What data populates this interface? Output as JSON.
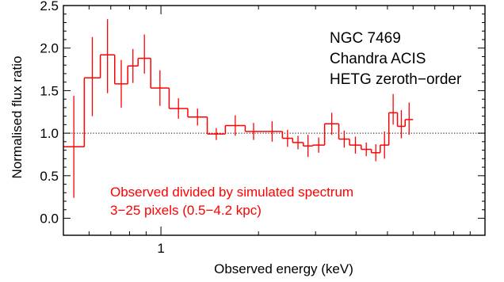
{
  "chart_data": {
    "type": "line",
    "style": "step histogram with vertical error bars",
    "xscale": "log",
    "xlim": [
      0.5,
      10.0
    ],
    "ylim": [
      -0.2,
      2.5
    ],
    "xlabel": "Observed energy (keV)",
    "ylabel": "Normalised flux ratio",
    "x_ticks_labeled": [
      "1"
    ],
    "y_ticks": [
      {
        "value": 0.0,
        "label": "0.0"
      },
      {
        "value": 0.5,
        "label": "0.5"
      },
      {
        "value": 1.0,
        "label": "1.0"
      },
      {
        "value": 1.5,
        "label": "1.5"
      },
      {
        "value": 2.0,
        "label": "2.0"
      },
      {
        "value": 2.5,
        "label": "2.5"
      }
    ],
    "reference_line": {
      "y": 1.0,
      "style": "dotted"
    },
    "annotations": {
      "object": [
        "NGC 7469",
        "Chandra ACIS",
        "HETG zeroth−order"
      ],
      "description": [
        "Observed divided by simulated spectrum",
        "3−25 pixels (0.5−4.2 kpc)"
      ]
    },
    "color_series": "#ff0000",
    "color_axes": "#000000",
    "bins": [
      {
        "lo": 0.5,
        "hi": 0.58,
        "y": 0.84,
        "err_lo": 0.6,
        "err_hi": 0.6
      },
      {
        "lo": 0.58,
        "hi": 0.65,
        "y": 1.65,
        "err_lo": 0.45,
        "err_hi": 0.48
      },
      {
        "lo": 0.65,
        "hi": 0.72,
        "y": 1.92,
        "err_lo": 0.45,
        "err_hi": 0.42
      },
      {
        "lo": 0.72,
        "hi": 0.79,
        "y": 1.58,
        "err_lo": 0.28,
        "err_hi": 0.28
      },
      {
        "lo": 0.79,
        "hi": 0.85,
        "y": 1.79,
        "err_lo": 0.2,
        "err_hi": 0.2
      },
      {
        "lo": 0.85,
        "hi": 0.93,
        "y": 1.88,
        "err_lo": 0.18,
        "err_hi": 0.28
      },
      {
        "lo": 0.93,
        "hi": 1.06,
        "y": 1.53,
        "err_lo": 0.21,
        "err_hi": 0.21
      },
      {
        "lo": 1.06,
        "hi": 1.21,
        "y": 1.29,
        "err_lo": 0.12,
        "err_hi": 0.12
      },
      {
        "lo": 1.21,
        "hi": 1.39,
        "y": 1.19,
        "err_lo": 0.1,
        "err_hi": 0.1
      },
      {
        "lo": 1.39,
        "hi": 1.58,
        "y": 0.99,
        "err_lo": 0.07,
        "err_hi": 0.07
      },
      {
        "lo": 1.58,
        "hi": 1.82,
        "y": 1.09,
        "err_lo": 0.12,
        "err_hi": 0.12
      },
      {
        "lo": 1.82,
        "hi": 2.05,
        "y": 1.02,
        "err_lo": 0.1,
        "err_hi": 0.1
      },
      {
        "lo": 2.05,
        "hi": 2.37,
        "y": 1.02,
        "err_lo": 0.12,
        "err_hi": 0.12
      },
      {
        "lo": 2.37,
        "hi": 2.55,
        "y": 0.94,
        "err_lo": 0.1,
        "err_hi": 0.1
      },
      {
        "lo": 2.55,
        "hi": 2.75,
        "y": 0.89,
        "err_lo": 0.08,
        "err_hi": 0.08
      },
      {
        "lo": 2.75,
        "hi": 2.94,
        "y": 0.85,
        "err_lo": 0.13,
        "err_hi": 0.13
      },
      {
        "lo": 2.94,
        "hi": 3.2,
        "y": 0.86,
        "err_lo": 0.09,
        "err_hi": 0.09
      },
      {
        "lo": 3.2,
        "hi": 3.54,
        "y": 1.11,
        "err_lo": 0.13,
        "err_hi": 0.13
      },
      {
        "lo": 3.54,
        "hi": 3.82,
        "y": 0.93,
        "err_lo": 0.1,
        "err_hi": 0.1
      },
      {
        "lo": 3.82,
        "hi": 4.15,
        "y": 0.86,
        "err_lo": 0.1,
        "err_hi": 0.1
      },
      {
        "lo": 4.15,
        "hi": 4.46,
        "y": 0.81,
        "err_lo": 0.08,
        "err_hi": 0.08
      },
      {
        "lo": 4.46,
        "hi": 4.75,
        "y": 0.77,
        "err_lo": 0.1,
        "err_hi": 0.1
      },
      {
        "lo": 4.75,
        "hi": 5.05,
        "y": 0.86,
        "err_lo": 0.16,
        "err_hi": 0.16
      },
      {
        "lo": 5.05,
        "hi": 5.37,
        "y": 1.24,
        "err_lo": 0.14,
        "err_hi": 0.22
      },
      {
        "lo": 5.37,
        "hi": 5.67,
        "y": 1.08,
        "err_lo": 0.14,
        "err_hi": 0.19
      },
      {
        "lo": 5.67,
        "hi": 6.0,
        "y": 1.16,
        "err_lo": 0.18,
        "err_hi": 0.2
      }
    ]
  }
}
